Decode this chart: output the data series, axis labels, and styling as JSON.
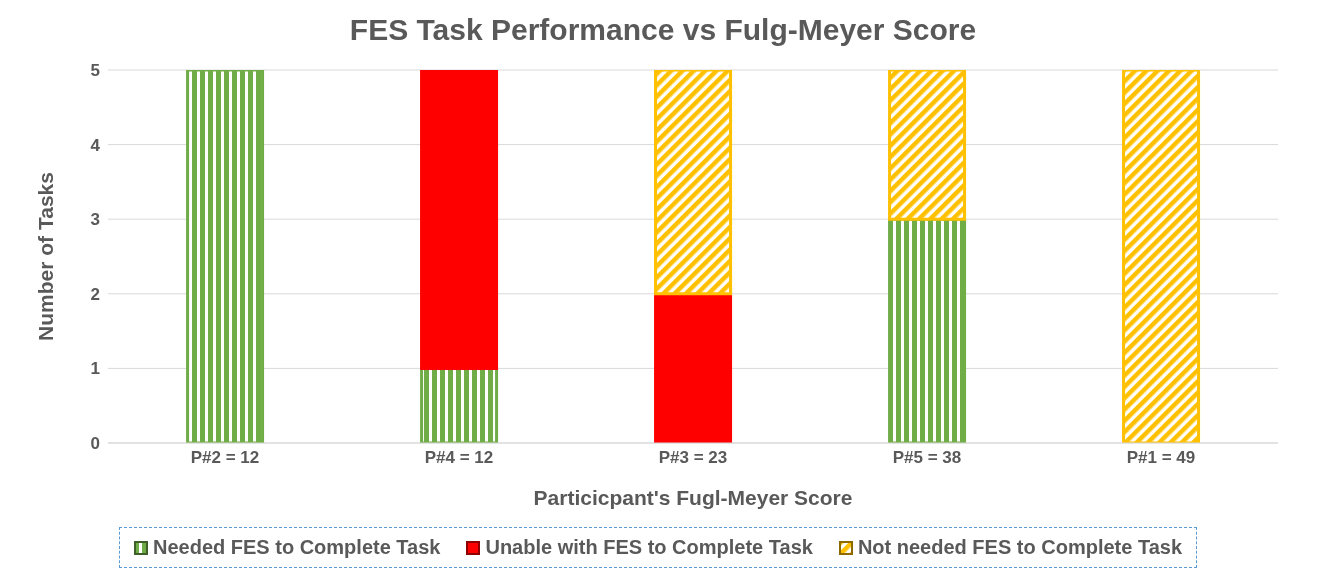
{
  "chart_data": {
    "type": "bar",
    "title": "FES Task Performance vs Fulg-Meyer Score",
    "xlabel": "Particicpant's Fugl-Meyer Score",
    "ylabel": "Number of Tasks",
    "categories": [
      "P#2 = 12",
      "P#4 = 12",
      "P#3 = 23",
      "P#5 = 38",
      "P#1 = 49"
    ],
    "stacked": true,
    "ylim": [
      0,
      5
    ],
    "yticks": [
      0,
      1,
      2,
      3,
      4,
      5
    ],
    "grid": "y",
    "legend": "bottom",
    "series": [
      {
        "name": "Needed FES to Complete Task",
        "color": "#70ad47",
        "values": [
          5,
          1,
          0,
          3,
          0
        ]
      },
      {
        "name": "Unable with FES to Complete Task",
        "color": "#ff0000",
        "values": [
          0,
          4,
          2,
          0,
          0
        ]
      },
      {
        "name": "Not needed FES to Complete Task",
        "color": "#ffc000",
        "values": [
          0,
          0,
          3,
          2,
          5
        ]
      }
    ]
  }
}
